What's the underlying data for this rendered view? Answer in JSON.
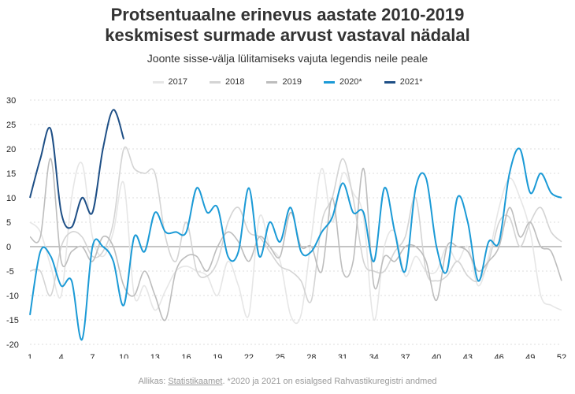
{
  "header": {
    "title_line1": "Protsentuaalne erinevus aastate 2010-2019",
    "title_line2": "keskmisest surmade arvust vastaval nädalal",
    "subtitle": "Joonte sisse-välja lülitamiseks vajuta legendis neile peale"
  },
  "source": {
    "prefix": "Allikas: ",
    "link": "Statistikaamet",
    "suffix": ". *2020 ja 2021 on esialgsed Rahvastikuregistri andmed"
  },
  "chart_data": {
    "type": "line",
    "title": "Protsentuaalne erinevus aastate 2010-2019 keskmisest surmade arvust vastaval nädalal",
    "xlabel": "",
    "ylabel": "",
    "xlim": [
      1,
      52
    ],
    "ylim": [
      -20,
      30
    ],
    "x_ticks": [
      1,
      4,
      7,
      10,
      13,
      16,
      19,
      22,
      25,
      28,
      31,
      34,
      37,
      40,
      43,
      46,
      49,
      52
    ],
    "y_ticks": [
      -20,
      -15,
      -10,
      -5,
      0,
      5,
      10,
      15,
      20,
      25,
      30
    ],
    "grid": true,
    "legend_position": "top-center",
    "series": [
      {
        "name": "2017",
        "color": "#e6e6e6",
        "values": [
          5,
          3,
          -4,
          -10,
          10,
          17,
          2,
          -2,
          3,
          13,
          -10,
          -8,
          -13,
          -9,
          -5,
          -4,
          -5,
          -6,
          -10,
          -3,
          -8,
          -14,
          6,
          0,
          -3,
          -14,
          -14,
          2,
          16,
          5,
          15,
          11,
          6,
          -15,
          0,
          3,
          -6,
          -2,
          -5,
          -5,
          0,
          -3,
          0,
          -8,
          -2,
          8,
          14,
          10,
          3,
          -10,
          -12,
          -13
        ]
      },
      {
        "name": "2018",
        "color": "#d4d4d4",
        "values": [
          -5,
          -5,
          -10,
          0,
          3,
          2,
          -2,
          -1,
          5,
          20,
          16,
          15,
          15,
          2,
          -3,
          5,
          -5,
          -6,
          -3,
          5,
          8,
          3,
          2,
          -1,
          -4,
          -5,
          -7,
          -11,
          5,
          10,
          18,
          10,
          -3,
          -5,
          -5,
          -1,
          2,
          10,
          -5,
          -7,
          -6,
          -3,
          -6,
          -7,
          -3,
          5,
          6,
          0,
          5,
          8,
          3,
          1
        ]
      },
      {
        "name": "2019",
        "color": "#bdbdbd",
        "values": [
          2,
          2,
          18,
          -3,
          -1,
          0,
          -3,
          2,
          0,
          -8,
          -10,
          -5,
          -10,
          -15,
          -5,
          -2,
          -2,
          -5,
          0,
          3,
          1,
          -3,
          2,
          0,
          -2,
          7,
          0,
          0,
          -5,
          10,
          -5,
          -3,
          16,
          -8,
          -2,
          -3,
          0,
          0,
          -3,
          -11,
          0,
          0,
          -1,
          -5,
          -3,
          0,
          8,
          2,
          5,
          0,
          -1,
          -7
        ]
      },
      {
        "name": "2020*",
        "color": "#1b9ad6",
        "values": [
          -14,
          -1,
          -2,
          -8,
          -7,
          -19,
          0,
          0,
          -3,
          -12,
          2,
          -1,
          7,
          3,
          3,
          3,
          12,
          7,
          8,
          -2,
          -1,
          12,
          -2,
          5,
          1,
          8,
          -1,
          -1,
          3,
          6,
          13,
          7,
          7,
          -3,
          12,
          3,
          -5,
          12,
          14,
          0,
          -5,
          10,
          5,
          -7,
          1,
          1,
          15,
          20,
          11,
          15,
          11,
          10
        ]
      },
      {
        "name": "2021*",
        "color": "#1e4f86",
        "values": [
          10,
          18,
          24,
          7,
          4,
          10,
          7,
          20,
          28,
          22
        ]
      }
    ]
  }
}
